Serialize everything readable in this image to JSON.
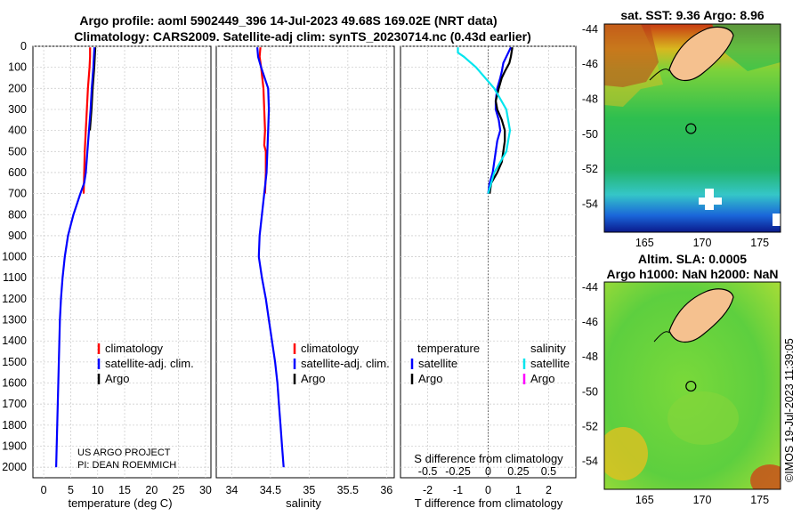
{
  "header": {
    "title_line1": "Argo profile: aoml 5902449_396 14-Jul-2023 49.68S 169.02E (NRT data)",
    "title_line2": "Climatology: CARS2009. Satellite-adj clim: synTS_20230714.nc (0.43d earlier)"
  },
  "colors": {
    "climatology": "#ff0000",
    "satellite_adj": "#0000ff",
    "argo": "#000000",
    "satellite_salinity": "#00e5ee",
    "argo_salinity": "#ff00ff",
    "land": "#f5c18f"
  },
  "chart_data": [
    {
      "id": "temperature-profile",
      "type": "line",
      "xlabel": "temperature (deg C)",
      "xlim": [
        -2,
        31
      ],
      "xticks": [
        0,
        5,
        10,
        15,
        20,
        25,
        30
      ],
      "ylim": [
        0,
        2050
      ],
      "yticks": [
        0,
        100,
        200,
        300,
        400,
        500,
        600,
        700,
        800,
        900,
        1000,
        1100,
        1200,
        1300,
        1400,
        1500,
        1600,
        1700,
        1800,
        1900,
        2000
      ],
      "legend": [
        "climatology",
        "satellite-adj. clim.",
        "Argo"
      ],
      "notes": [
        "US ARGO PROJECT",
        "PI: DEAN ROEMMICH"
      ],
      "series": [
        {
          "name": "climatology",
          "depth": [
            5,
            50,
            100,
            200,
            300,
            400,
            500,
            600,
            700
          ],
          "values": [
            8.6,
            8.6,
            8.5,
            8.2,
            8.0,
            7.8,
            7.6,
            7.5,
            7.4
          ]
        },
        {
          "name": "satellite-adj. clim.",
          "depth": [
            5,
            50,
            100,
            200,
            300,
            400,
            500,
            600,
            650,
            700,
            800,
            900,
            1000,
            1100,
            1200,
            1300,
            1400,
            1500,
            1600,
            1700,
            1800,
            1900,
            2000
          ],
          "values": [
            9.4,
            9.3,
            9.2,
            8.9,
            8.7,
            8.4,
            8.1,
            7.8,
            7.5,
            6.8,
            5.5,
            4.5,
            3.9,
            3.5,
            3.2,
            3.0,
            2.9,
            2.8,
            2.7,
            2.6,
            2.5,
            2.4,
            2.3
          ]
        }
      ]
    },
    {
      "id": "salinity-profile",
      "type": "line",
      "xlabel": "salinity",
      "xlim": [
        33.8,
        36.1
      ],
      "xticks": [
        "34",
        "34.5",
        "35",
        "35.5",
        "36"
      ],
      "ylim": [
        0,
        2050
      ],
      "legend": [
        "climatology",
        "satellite-adj. clim.",
        "Argo"
      ],
      "series": [
        {
          "name": "climatology",
          "depth": [
            5,
            50,
            100,
            200,
            300,
            400,
            470,
            500,
            600,
            700
          ],
          "values": [
            34.37,
            34.36,
            34.38,
            34.41,
            34.42,
            34.43,
            34.42,
            34.44,
            34.44,
            34.43
          ]
        },
        {
          "name": "satellite-adj. clim.",
          "depth": [
            5,
            50,
            100,
            200,
            300,
            400,
            500,
            600,
            700,
            800,
            900,
            1000,
            1100,
            1200,
            1300,
            1400,
            1500,
            1600,
            1700,
            1800,
            1900,
            2000
          ],
          "values": [
            34.33,
            34.34,
            34.38,
            34.47,
            34.48,
            34.47,
            34.46,
            34.45,
            34.42,
            34.39,
            34.36,
            34.35,
            34.39,
            34.44,
            34.48,
            34.52,
            34.56,
            34.59,
            34.61,
            34.63,
            34.65,
            34.67
          ]
        }
      ]
    },
    {
      "id": "difference-profile",
      "type": "line",
      "xlabel": "T difference from climatology",
      "xlabel_top": "S difference from climatology",
      "xlim": [
        -2.9,
        2.9
      ],
      "xticks": [
        "-2",
        "-1",
        "0",
        "1",
        "2"
      ],
      "xticks_top": [
        "-0.5",
        "-0.25",
        "0",
        "0.25",
        "0.5"
      ],
      "ylim": [
        0,
        2050
      ],
      "legend_temperature_title": "temperature",
      "legend_salinity_title": "salinity",
      "legend_entries": [
        "satellite",
        "Argo"
      ],
      "series": [
        {
          "name": "temperature satellite",
          "depth": [
            5,
            50,
            80,
            120,
            150,
            200,
            260,
            300,
            350,
            400,
            450,
            500,
            550,
            600,
            650,
            700
          ],
          "values": [
            0.75,
            0.6,
            0.5,
            0.45,
            0.4,
            0.3,
            0.25,
            0.25,
            0.35,
            0.4,
            0.3,
            0.25,
            0.2,
            0.15,
            0.05,
            0.0
          ]
        },
        {
          "name": "temperature Argo",
          "depth": [
            5,
            50,
            80,
            120,
            150,
            200,
            260,
            300,
            350,
            400,
            450,
            500,
            550,
            600,
            650,
            700
          ],
          "values": [
            0.8,
            0.75,
            0.7,
            0.55,
            0.45,
            0.35,
            0.25,
            0.3,
            0.45,
            0.55,
            0.55,
            0.5,
            0.45,
            0.3,
            0.1,
            0.05
          ]
        },
        {
          "name": "salinity satellite",
          "depth": [
            5,
            30,
            50,
            100,
            200,
            300,
            400,
            500,
            600,
            700
          ],
          "values": [
            -0.25,
            -0.25,
            -0.2,
            -0.1,
            0.05,
            0.15,
            0.18,
            0.15,
            0.05,
            0.0
          ]
        }
      ]
    },
    {
      "id": "sst-map",
      "type": "heatmap",
      "title": "sat. SST: 9.36 Argo: 8.96",
      "xticks": [
        "165",
        "170",
        "175"
      ],
      "yticks": [
        "-44",
        "-46",
        "-48",
        "-50",
        "-52",
        "-54"
      ],
      "lon_range": [
        161.5,
        176.8
      ],
      "lat_range": [
        -55.6,
        -43.7
      ],
      "argo_position": {
        "lon": 169.02,
        "lat": -49.68
      }
    },
    {
      "id": "sla-map",
      "type": "heatmap",
      "title_line1": "Altim. SLA: 0.0005",
      "title_line2": "Argo h1000: NaN h2000: NaN",
      "xticks": [
        "165",
        "170",
        "175"
      ],
      "yticks": [
        "-44",
        "-46",
        "-48",
        "-50",
        "-52",
        "-54"
      ],
      "lon_range": [
        161.5,
        176.8
      ],
      "lat_range": [
        -55.6,
        -43.7
      ],
      "argo_position": {
        "lon": 169.02,
        "lat": -49.68
      }
    }
  ],
  "footer": {
    "watermark": "©IMOS 19-Jul-2023 11:39:05"
  }
}
